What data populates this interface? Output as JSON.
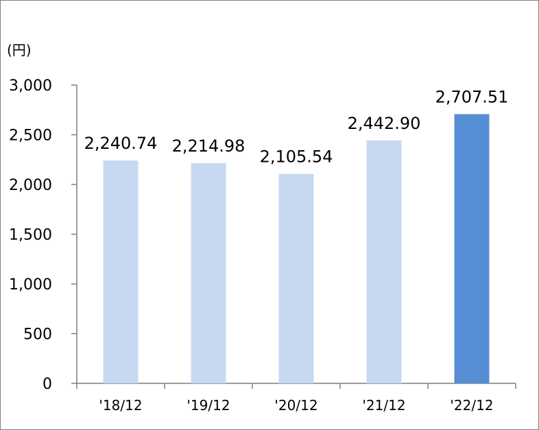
{
  "chart_data": {
    "type": "bar",
    "unit_label": "(円)",
    "categories": [
      "'18/12",
      "'19/12",
      "'20/12",
      "'21/12",
      "'22/12"
    ],
    "values": [
      2240.74,
      2214.98,
      2105.54,
      2442.9,
      2707.51
    ],
    "value_labels": [
      "2,240.74",
      "2,214.98",
      "2,105.54",
      "2,442.90",
      "2,707.51"
    ],
    "ylim": [
      0,
      3000
    ],
    "yticks": [
      0,
      500,
      1000,
      1500,
      2000,
      2500,
      3000
    ],
    "ytick_labels": [
      "0",
      "500",
      "1,000",
      "1,500",
      "2,000",
      "2,500",
      "3,000"
    ],
    "bar_colors": [
      "#c6d9f1",
      "#c6d9f1",
      "#c6d9f1",
      "#c6d9f1",
      "#558ed5"
    ],
    "axis_color": "#7f7f7f",
    "grid": false,
    "legend": "none"
  }
}
